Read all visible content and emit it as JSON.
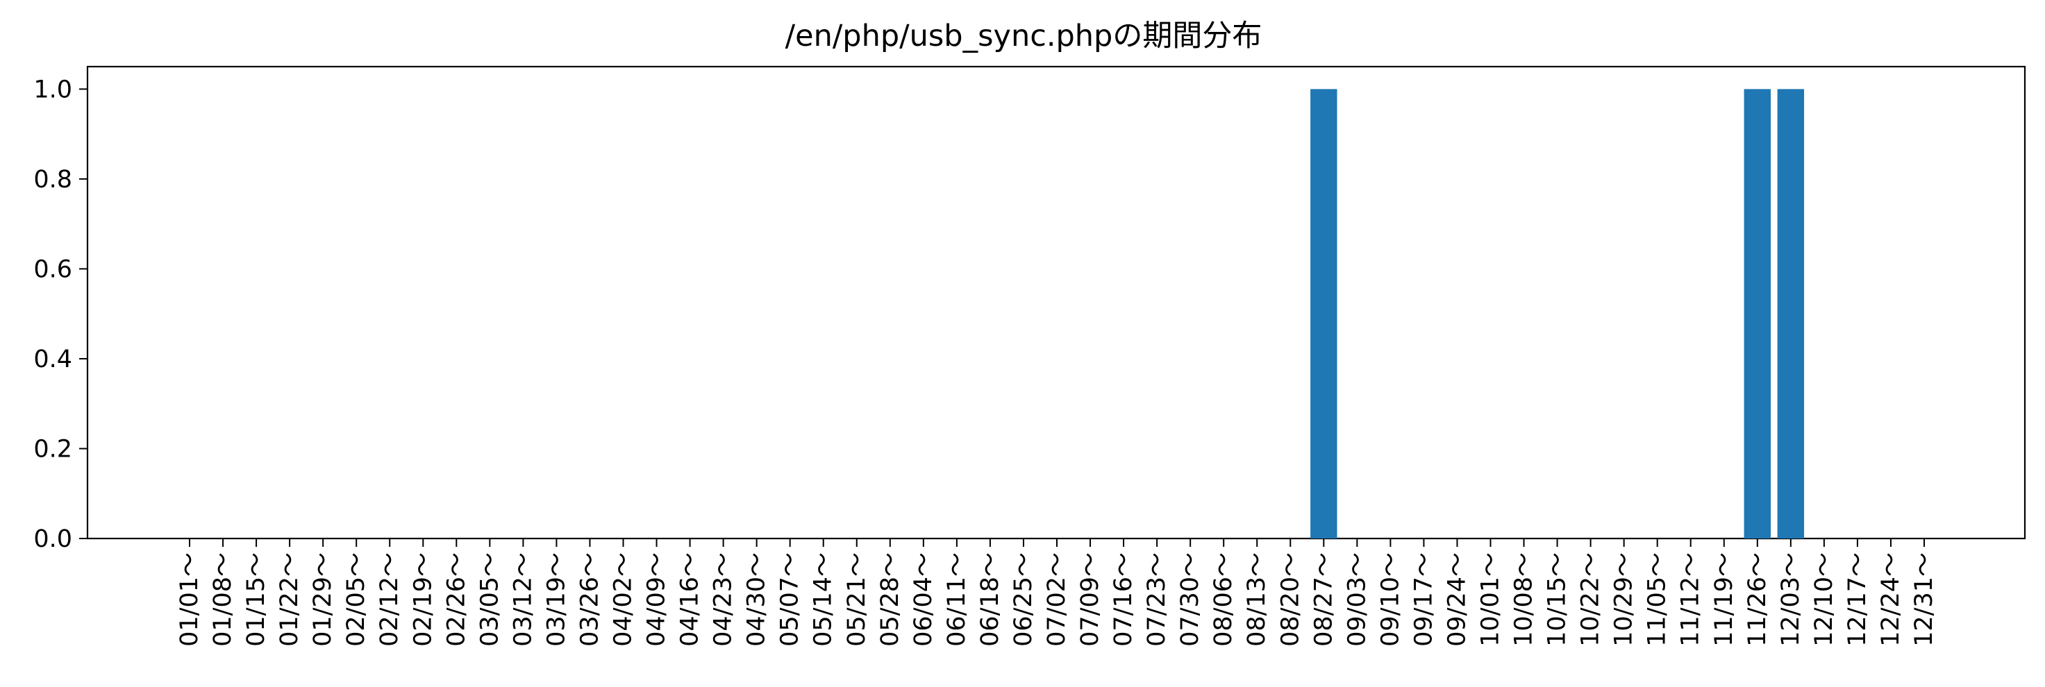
{
  "chart_data": {
    "type": "bar",
    "title": "/en/php/usb_sync.phpの期間分布",
    "xlabel": "",
    "ylabel": "",
    "ylim": [
      0,
      1.05
    ],
    "yticks": [
      "0.0",
      "0.2",
      "0.4",
      "0.6",
      "0.8",
      "1.0"
    ],
    "grid": false,
    "bar_color": "#1f77b4",
    "categories": [
      "01/01～",
      "01/08～",
      "01/15～",
      "01/22～",
      "01/29～",
      "02/05～",
      "02/12～",
      "02/19～",
      "02/26～",
      "03/05～",
      "03/12～",
      "03/19～",
      "03/26～",
      "04/02～",
      "04/09～",
      "04/16～",
      "04/23～",
      "04/30～",
      "05/07～",
      "05/14～",
      "05/21～",
      "05/28～",
      "06/04～",
      "06/11～",
      "06/18～",
      "06/25～",
      "07/02～",
      "07/09～",
      "07/16～",
      "07/23～",
      "07/30～",
      "08/06～",
      "08/13～",
      "08/20～",
      "08/27～",
      "09/03～",
      "09/10～",
      "09/17～",
      "09/24～",
      "10/01～",
      "10/08～",
      "10/15～",
      "10/22～",
      "10/29～",
      "11/05～",
      "11/12～",
      "11/19～",
      "11/26～",
      "12/03～",
      "12/10～",
      "12/17～",
      "12/24～",
      "12/31～"
    ],
    "values": [
      0,
      0,
      0,
      0,
      0,
      0,
      0,
      0,
      0,
      0,
      0,
      0,
      0,
      0,
      0,
      0,
      0,
      0,
      0,
      0,
      0,
      0,
      0,
      0,
      0,
      0,
      0,
      0,
      0,
      0,
      0,
      0,
      0,
      0,
      1,
      0,
      0,
      0,
      0,
      0,
      0,
      0,
      0,
      0,
      0,
      0,
      0,
      1,
      1,
      0,
      0,
      0,
      0
    ]
  }
}
